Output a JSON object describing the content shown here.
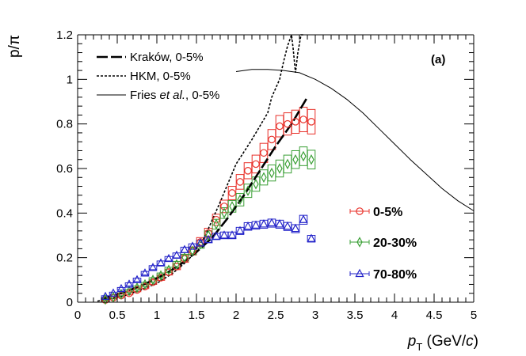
{
  "chart_data": {
    "type": "scatter",
    "title": "",
    "panel_label": "(a)",
    "xlabel": {
      "main": "p",
      "sub": "T",
      "units_pre": " (GeV/",
      "units_italic": "c",
      "units_post": ")"
    },
    "ylabel": "p/π",
    "xlim": [
      0,
      5
    ],
    "ylim": [
      0,
      1.2
    ],
    "xticks": [
      0,
      0.5,
      1,
      1.5,
      2,
      2.5,
      3,
      3.5,
      4,
      4.5,
      5
    ],
    "xtick_labels": [
      "0",
      "0.5",
      "1",
      "1.5",
      "2",
      "2.5",
      "3",
      "3.5",
      "4",
      "4.5",
      "5"
    ],
    "yticks": [
      0,
      0.2,
      0.4,
      0.6,
      0.8,
      1,
      1.2
    ],
    "ytick_labels": [
      "0",
      "0.2",
      "0.4",
      "0.6",
      "0.8",
      "1",
      "1.2"
    ],
    "models": [
      {
        "name": "Kraków, 0-5%",
        "label_plain": "Kraków, 0-5%",
        "style": "longdash",
        "color": "#000000",
        "x": [
          0.3,
          0.5,
          0.7,
          0.9,
          1.1,
          1.3,
          1.5,
          1.7,
          1.9,
          2.1,
          2.3,
          2.5,
          2.7,
          2.9
        ],
        "y": [
          0.015,
          0.035,
          0.06,
          0.09,
          0.125,
          0.17,
          0.225,
          0.29,
          0.38,
          0.48,
          0.59,
          0.7,
          0.8,
          0.92
        ]
      },
      {
        "name": "HKM, 0-5%",
        "label_plain": "HKM, 0-5%",
        "style": "dotted",
        "color": "#000000",
        "x": [
          0.25,
          0.4,
          0.6,
          0.8,
          1.0,
          1.2,
          1.4,
          1.6,
          1.8,
          2.0,
          2.2,
          2.4,
          2.45,
          2.55,
          2.6,
          2.65,
          2.7,
          2.72,
          2.75,
          2.78,
          2.82,
          2.85
        ],
        "y": [
          0.005,
          0.015,
          0.03,
          0.055,
          0.085,
          0.13,
          0.19,
          0.29,
          0.45,
          0.62,
          0.73,
          0.85,
          0.92,
          1.0,
          1.08,
          1.15,
          1.2,
          1.14,
          1.03,
          1.12,
          1.2,
          1.2
        ]
      },
      {
        "name": "Fries et al., 0-5%",
        "label_pre": "Fries ",
        "label_italic": "et al.",
        "label_post": ", 0-5%",
        "style": "solid",
        "color": "#000000",
        "x": [
          2.0,
          2.2,
          2.4,
          2.6,
          2.8,
          3.0,
          3.2,
          3.4,
          3.6,
          3.8,
          4.0,
          4.2,
          4.4,
          4.6,
          4.8,
          5.0
        ],
        "y": [
          1.035,
          1.045,
          1.045,
          1.04,
          1.03,
          1.0,
          0.96,
          0.91,
          0.85,
          0.78,
          0.71,
          0.64,
          0.575,
          0.51,
          0.455,
          0.41
        ]
      }
    ],
    "series": [
      {
        "name": "0-5%",
        "marker": "circle",
        "color": "#e8312a",
        "x": [
          0.35,
          0.45,
          0.55,
          0.65,
          0.75,
          0.85,
          0.95,
          1.05,
          1.15,
          1.25,
          1.35,
          1.45,
          1.55,
          1.65,
          1.75,
          1.85,
          1.95,
          2.05,
          2.15,
          2.25,
          2.35,
          2.45,
          2.55,
          2.65,
          2.75,
          2.85,
          2.95
        ],
        "y": [
          0.01,
          0.02,
          0.03,
          0.04,
          0.055,
          0.07,
          0.09,
          0.11,
          0.135,
          0.16,
          0.195,
          0.23,
          0.27,
          0.31,
          0.37,
          0.43,
          0.49,
          0.54,
          0.59,
          0.62,
          0.67,
          0.73,
          0.79,
          0.8,
          0.81,
          0.82,
          0.81
        ],
        "sys": [
          0.004,
          0.005,
          0.006,
          0.007,
          0.008,
          0.009,
          0.01,
          0.012,
          0.013,
          0.014,
          0.016,
          0.018,
          0.02,
          0.022,
          0.025,
          0.028,
          0.03,
          0.033,
          0.036,
          0.04,
          0.043,
          0.045,
          0.048,
          0.05,
          0.052,
          0.055,
          0.055
        ]
      },
      {
        "name": "20-30%",
        "marker": "diamond",
        "color": "#3a9f35",
        "x": [
          0.35,
          0.45,
          0.55,
          0.65,
          0.75,
          0.85,
          0.95,
          1.05,
          1.15,
          1.25,
          1.35,
          1.45,
          1.55,
          1.65,
          1.75,
          1.85,
          1.95,
          2.05,
          2.15,
          2.25,
          2.35,
          2.45,
          2.55,
          2.65,
          2.75,
          2.85,
          2.95
        ],
        "y": [
          0.012,
          0.022,
          0.035,
          0.05,
          0.065,
          0.08,
          0.1,
          0.12,
          0.145,
          0.17,
          0.2,
          0.23,
          0.26,
          0.3,
          0.35,
          0.4,
          0.43,
          0.46,
          0.5,
          0.53,
          0.56,
          0.58,
          0.6,
          0.62,
          0.64,
          0.655,
          0.64
        ],
        "sys": [
          0.004,
          0.005,
          0.006,
          0.007,
          0.008,
          0.009,
          0.01,
          0.011,
          0.012,
          0.013,
          0.015,
          0.016,
          0.018,
          0.02,
          0.022,
          0.024,
          0.026,
          0.028,
          0.03,
          0.032,
          0.034,
          0.036,
          0.038,
          0.04,
          0.04,
          0.042,
          0.042
        ]
      },
      {
        "name": "70-80%",
        "marker": "triangle",
        "color": "#2323c9",
        "x": [
          0.35,
          0.45,
          0.55,
          0.65,
          0.75,
          0.85,
          0.95,
          1.05,
          1.15,
          1.25,
          1.35,
          1.45,
          1.55,
          1.65,
          1.75,
          1.85,
          1.95,
          2.05,
          2.15,
          2.25,
          2.35,
          2.45,
          2.55,
          2.65,
          2.75,
          2.85,
          2.95
        ],
        "y": [
          0.025,
          0.04,
          0.06,
          0.08,
          0.1,
          0.13,
          0.155,
          0.175,
          0.195,
          0.21,
          0.235,
          0.25,
          0.265,
          0.28,
          0.295,
          0.3,
          0.3,
          0.32,
          0.34,
          0.345,
          0.35,
          0.355,
          0.35,
          0.34,
          0.33,
          0.37,
          0.285
        ],
        "sys": [
          0.004,
          0.005,
          0.006,
          0.007,
          0.008,
          0.008,
          0.009,
          0.01,
          0.01,
          0.011,
          0.012,
          0.012,
          0.013,
          0.013,
          0.014,
          0.015,
          0.015,
          0.016,
          0.017,
          0.017,
          0.018,
          0.018,
          0.018,
          0.018,
          0.018,
          0.02,
          0.015
        ]
      }
    ]
  }
}
